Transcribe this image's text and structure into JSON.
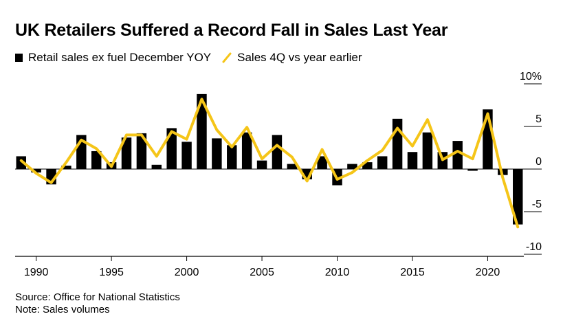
{
  "title": "UK Retailers Suffered a Record Fall in Sales Last Year",
  "legend": {
    "bars_label": "Retail sales ex fuel December YOY",
    "line_label": "Sales 4Q vs year earlier"
  },
  "footer": {
    "source": "Source: Office for National Statistics",
    "note": "Note: Sales volumes"
  },
  "colors": {
    "bars": "#000000",
    "line": "#f5c518",
    "axis": "#000000"
  },
  "chart_data": {
    "type": "bar+line",
    "title": "UK Retailers Suffered a Record Fall in Sales Last Year",
    "x": [
      1989,
      1990,
      1991,
      1992,
      1993,
      1994,
      1995,
      1996,
      1997,
      1998,
      1999,
      2000,
      2001,
      2002,
      2003,
      2004,
      2005,
      2006,
      2007,
      2008,
      2009,
      2010,
      2011,
      2012,
      2013,
      2014,
      2015,
      2016,
      2017,
      2018,
      2019,
      2020,
      2021,
      2022
    ],
    "series": [
      {
        "name": "Retail sales ex fuel December YOY",
        "type": "bar",
        "values": [
          1.5,
          -0.4,
          -1.8,
          0.4,
          4.0,
          2.1,
          0.8,
          3.7,
          4.2,
          0.5,
          4.8,
          3.2,
          8.8,
          3.6,
          2.8,
          4.3,
          1.0,
          4.0,
          0.6,
          -1.2,
          1.5,
          -1.9,
          0.6,
          0.8,
          1.5,
          5.9,
          2.0,
          4.3,
          2.0,
          3.3,
          -0.2,
          7.0,
          -0.7,
          -6.5
        ]
      },
      {
        "name": "Sales 4Q vs year earlier",
        "type": "line",
        "values": [
          1.0,
          -0.5,
          -1.6,
          0.8,
          3.4,
          2.4,
          0.3,
          4.0,
          4.0,
          1.5,
          4.4,
          3.5,
          8.2,
          4.6,
          2.6,
          4.9,
          1.2,
          2.8,
          1.4,
          -1.4,
          2.3,
          -1.2,
          -0.4,
          1.0,
          2.2,
          4.8,
          2.7,
          5.8,
          1.1,
          2.1,
          1.2,
          6.5,
          -1.0,
          -6.8
        ]
      }
    ],
    "x_ticks": [
      1990,
      1995,
      2000,
      2005,
      2010,
      2015,
      2020
    ],
    "x_tick_labels": [
      "1990",
      "1995",
      "2000",
      "2005",
      "2010",
      "2015",
      "2020"
    ],
    "y_ticks": [
      10,
      5,
      0,
      -5,
      -10
    ],
    "y_tick_labels": [
      "10%",
      "5",
      "0",
      "-5",
      "-10"
    ],
    "ylim": [
      -10,
      10
    ],
    "xlim": [
      1988.6,
      2022.4
    ],
    "xlabel": "",
    "ylabel": "",
    "legend_position": "top-left"
  }
}
